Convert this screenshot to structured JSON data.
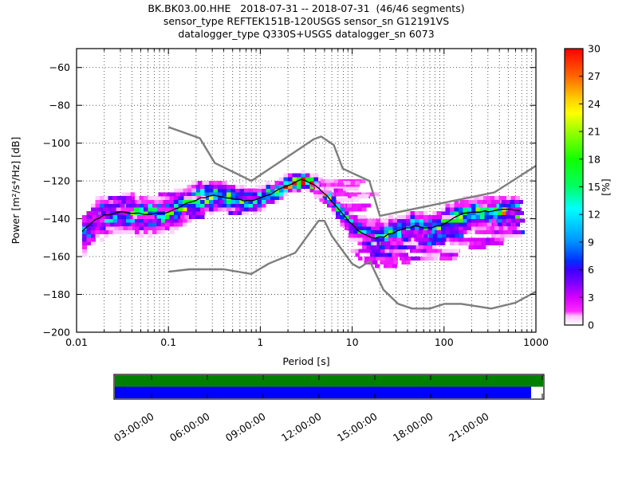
{
  "figure": {
    "title_line1": "BK.BK03.00.HHE   2018-07-31 -- 2018-07-31  (46/46 segments)",
    "title_line2": "sensor_type REFTEK151B-120USGS sensor_sn G12191VS",
    "title_line3": "datalogger_type Q330S+USGS datalogger_sn 6073"
  },
  "axes": {
    "xlabel": "Period [s]",
    "ylabel": "Power [m²/s⁴/Hz] [dB]",
    "xlim": [
      0.01,
      1000
    ],
    "ylim": [
      -200,
      -50
    ],
    "x_scale": "log",
    "grid": "dotted, major+minor x, major y",
    "xticks": [
      {
        "v": 0.01,
        "label": "0.01"
      },
      {
        "v": 0.1,
        "label": "0.1"
      },
      {
        "v": 1,
        "label": "1"
      },
      {
        "v": 10,
        "label": "10"
      },
      {
        "v": 100,
        "label": "100"
      },
      {
        "v": 1000,
        "label": "1000"
      }
    ],
    "yticks": [
      {
        "v": -200,
        "label": "−200"
      },
      {
        "v": -180,
        "label": "−180"
      },
      {
        "v": -160,
        "label": "−160"
      },
      {
        "v": -140,
        "label": "−140"
      },
      {
        "v": -120,
        "label": "−120"
      },
      {
        "v": -100,
        "label": "−100"
      },
      {
        "v": -80,
        "label": "−80"
      },
      {
        "v": -60,
        "label": "−60"
      }
    ]
  },
  "colorbar": {
    "label": "[%]",
    "ticks": [
      0,
      3,
      6,
      9,
      12,
      15,
      18,
      21,
      24,
      27,
      30
    ],
    "range": [
      0,
      30
    ],
    "stops": [
      [
        0.0,
        "#ffffff"
      ],
      [
        0.033,
        "#ffbfff"
      ],
      [
        0.05,
        "#ff29ff"
      ],
      [
        0.1,
        "#d400ff"
      ],
      [
        0.15,
        "#8000ff"
      ],
      [
        0.2,
        "#3c00ff"
      ],
      [
        0.233,
        "#0030ff"
      ],
      [
        0.3,
        "#0090ff"
      ],
      [
        0.36,
        "#00c8ff"
      ],
      [
        0.42,
        "#00ffff"
      ],
      [
        0.5,
        "#00ff66"
      ],
      [
        0.6,
        "#11ff00"
      ],
      [
        0.7,
        "#99ff00"
      ],
      [
        0.767,
        "#ffff00"
      ],
      [
        0.82,
        "#ffcc00"
      ],
      [
        0.9,
        "#ff6600"
      ],
      [
        1.0,
        "#ff0000"
      ]
    ]
  },
  "chart_data": {
    "type": "heatmap",
    "description": "Probabilistic power spectral density (PPSD) of seismic channel BK.BK03.00.HHE for 2018-07-31; 2D histogram of PSD probability [%] vs period, with black mode line and gray Peterson NLNM/NHNM noise model curves.",
    "mean_line": {
      "name": "psd-mode-line",
      "color": "#000000",
      "points": [
        [
          0.0115,
          -146.5
        ],
        [
          0.013,
          -144.5
        ],
        [
          0.015,
          -141.5
        ],
        [
          0.018,
          -139.0
        ],
        [
          0.022,
          -137.5
        ],
        [
          0.03,
          -136.3
        ],
        [
          0.04,
          -136.8
        ],
        [
          0.055,
          -137.5
        ],
        [
          0.075,
          -137.3
        ],
        [
          0.1,
          -136.6
        ],
        [
          0.13,
          -134.0
        ],
        [
          0.17,
          -131.5
        ],
        [
          0.22,
          -129.3
        ],
        [
          0.3,
          -127.6
        ],
        [
          0.38,
          -128.2
        ],
        [
          0.5,
          -129.5
        ],
        [
          0.65,
          -130.3
        ],
        [
          0.8,
          -130.6
        ],
        [
          1.0,
          -129.2
        ],
        [
          1.3,
          -126.9
        ],
        [
          1.7,
          -123.8
        ],
        [
          2.2,
          -121.2
        ],
        [
          2.8,
          -119.6
        ],
        [
          3.2,
          -119.9
        ],
        [
          3.8,
          -122.0
        ],
        [
          4.5,
          -124.8
        ],
        [
          5.5,
          -128.6
        ],
        [
          6.6,
          -133.2
        ],
        [
          8.0,
          -138.0
        ],
        [
          10,
          -143.1
        ],
        [
          12,
          -146.6
        ],
        [
          15,
          -149.4
        ],
        [
          18,
          -150.2
        ],
        [
          22,
          -149.4
        ],
        [
          27,
          -147.5
        ],
        [
          34,
          -145.8
        ],
        [
          45,
          -144.0
        ],
        [
          60,
          -144.6
        ],
        [
          75,
          -145.0
        ],
        [
          90,
          -143.5
        ],
        [
          110,
          -141.5
        ],
        [
          140,
          -138.5
        ],
        [
          170,
          -137.0
        ],
        [
          230,
          -136.0
        ],
        [
          300,
          -136.2
        ],
        [
          360,
          -136.0
        ],
        [
          430,
          -135.2
        ],
        [
          520,
          -135.3
        ],
        [
          680,
          -135.3
        ]
      ]
    },
    "noise_models": [
      {
        "name": "NHNM",
        "color": "#7d7d7d",
        "points": [
          [
            0.1,
            -91.5
          ],
          [
            0.22,
            -97.4
          ],
          [
            0.32,
            -110.5
          ],
          [
            0.8,
            -120.0
          ],
          [
            3.8,
            -98.0
          ],
          [
            4.6,
            -96.5
          ],
          [
            6.3,
            -101.0
          ],
          [
            7.9,
            -113.5
          ],
          [
            15.4,
            -120.0
          ],
          [
            20.0,
            -138.5
          ],
          [
            354.8,
            -126.0
          ],
          [
            1000,
            -112.0
          ]
        ]
      },
      {
        "name": "NLNM",
        "color": "#7d7d7d",
        "points": [
          [
            0.1,
            -168.0
          ],
          [
            0.17,
            -166.7
          ],
          [
            0.4,
            -166.7
          ],
          [
            0.8,
            -169.2
          ],
          [
            1.24,
            -163.7
          ],
          [
            2.4,
            -158.0
          ],
          [
            4.3,
            -141.1
          ],
          [
            5.0,
            -141.1
          ],
          [
            6.0,
            -149.0
          ],
          [
            10.0,
            -163.8
          ],
          [
            12.0,
            -166.0
          ],
          [
            15.6,
            -162.4
          ],
          [
            21.9,
            -177.5
          ],
          [
            31.6,
            -185.0
          ],
          [
            45.0,
            -187.5
          ],
          [
            70.0,
            -187.5
          ],
          [
            101.0,
            -185.0
          ],
          [
            154.0,
            -185.0
          ],
          [
            328.0,
            -187.5
          ],
          [
            600.0,
            -184.4
          ],
          [
            1000,
            -178.5
          ]
        ]
      }
    ],
    "histogram": {
      "period_range": [
        0.0115,
        680
      ],
      "db_bin": 2,
      "steps_per_decade": 21,
      "peak_percent": [
        [
          0.011,
          10
        ],
        [
          0.02,
          12
        ],
        [
          0.04,
          13
        ],
        [
          0.08,
          12
        ],
        [
          0.15,
          16
        ],
        [
          0.3,
          19
        ],
        [
          0.5,
          15
        ],
        [
          0.8,
          14
        ],
        [
          1.2,
          17
        ],
        [
          2,
          24
        ],
        [
          2.8,
          31
        ],
        [
          3.2,
          31
        ],
        [
          4,
          22
        ],
        [
          5.5,
          16
        ],
        [
          7,
          11
        ],
        [
          10,
          10
        ],
        [
          14,
          13
        ],
        [
          20,
          14
        ],
        [
          30,
          12
        ],
        [
          60,
          12
        ],
        [
          100,
          14
        ],
        [
          200,
          16
        ],
        [
          400,
          18
        ],
        [
          650,
          18
        ]
      ],
      "sigma_up": [
        [
          0.011,
          4
        ],
        [
          0.03,
          4
        ],
        [
          0.1,
          4
        ],
        [
          0.2,
          3.5
        ],
        [
          0.5,
          3
        ],
        [
          1,
          2.5
        ],
        [
          2,
          2
        ],
        [
          3,
          1.8
        ],
        [
          4,
          2
        ],
        [
          6,
          2.5
        ],
        [
          9,
          3
        ],
        [
          15,
          3.5
        ],
        [
          30,
          3.5
        ],
        [
          100,
          3.5
        ],
        [
          300,
          3
        ],
        [
          700,
          3
        ]
      ],
      "sigma_down": [
        [
          0.011,
          5
        ],
        [
          0.03,
          5
        ],
        [
          0.1,
          4.5
        ],
        [
          0.3,
          3.5
        ],
        [
          1,
          2.5
        ],
        [
          2,
          2
        ],
        [
          3,
          1.8
        ],
        [
          5,
          2
        ],
        [
          8,
          2.5
        ],
        [
          15,
          4
        ],
        [
          30,
          5
        ],
        [
          100,
          5
        ],
        [
          300,
          4
        ],
        [
          700,
          4
        ]
      ],
      "outlier_regions": [
        {
          "p": [
            3.5,
            12
          ],
          "rel": [
            2,
            26
          ],
          "cap_db": -121,
          "n": 46,
          "pct": [
            0.7,
            2.6
          ],
          "max_len": 5
        },
        {
          "p": [
            9,
            40
          ],
          "rel": [
            -17,
            -4
          ],
          "n": 30,
          "pct": [
            0.7,
            3.0
          ],
          "max_len": 6
        },
        {
          "p": [
            30,
            350
          ],
          "rel": [
            -20,
            -6
          ],
          "n": 42,
          "pct": [
            0.7,
            3.5
          ],
          "max_len": 7
        },
        {
          "p": [
            60,
            350
          ],
          "rel": [
            2,
            8
          ],
          "n": 14,
          "pct": [
            0.7,
            2.5
          ],
          "max_len": 5
        },
        {
          "p": [
            350,
            700
          ],
          "rel": [
            -14,
            4
          ],
          "n": 16,
          "pct": [
            1.0,
            6.0
          ],
          "max_len": 6
        },
        {
          "p": [
            0.012,
            0.9
          ],
          "rel": [
            -9,
            9
          ],
          "n": 34,
          "pct": [
            1.0,
            5.0
          ],
          "max_len": 6
        },
        {
          "p": [
            15,
            120
          ],
          "rel": [
            -10,
            -2
          ],
          "n": 22,
          "pct": [
            3.0,
            8.0
          ],
          "max_len": 8
        }
      ]
    }
  },
  "timeline": {
    "labels": [
      "03:00:00",
      "06:00:00",
      "09:00:00",
      "12:00:00",
      "15:00:00",
      "18:00:00",
      "21:00:00"
    ],
    "availability_color": "#008000",
    "coverage_color": "#0000ff",
    "gap_color": "#ffffff",
    "coverage_fraction": 0.972
  }
}
